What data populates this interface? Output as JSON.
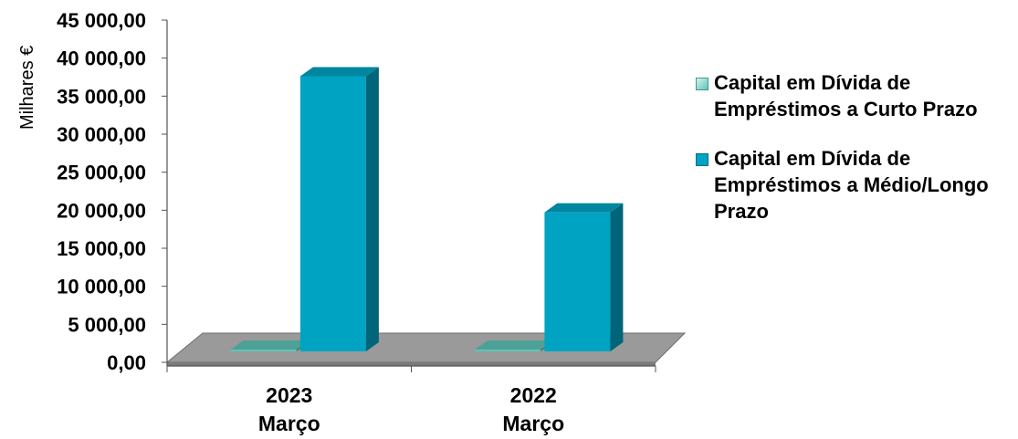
{
  "chart_data": {
    "type": "bar",
    "ylabel": "Milhares €",
    "ylim": [
      0,
      45000
    ],
    "yticks": [
      {
        "value": 45000,
        "label": "45 000,00"
      },
      {
        "value": 40000,
        "label": "40 000,00"
      },
      {
        "value": 35000,
        "label": "35 000,00"
      },
      {
        "value": 30000,
        "label": "30 000,00"
      },
      {
        "value": 25000,
        "label": "25 000,00"
      },
      {
        "value": 20000,
        "label": "20 000,00"
      },
      {
        "value": 15000,
        "label": "15 000,00"
      },
      {
        "value": 10000,
        "label": "10 000,00"
      },
      {
        "value": 5000,
        "label": "5 000,00"
      },
      {
        "value": 0,
        "label": "0,00"
      }
    ],
    "categories": [
      {
        "year": "2023",
        "month": "Março"
      },
      {
        "year": "2022",
        "month": "Março"
      }
    ],
    "series": [
      {
        "name": "Capital em Dívida de Empréstimos a Curto Prazo",
        "values": [
          0,
          0
        ],
        "color": "#5fc4b8"
      },
      {
        "name": "Capital em Dívida de Empréstimos a Médio/Longo Prazo",
        "values": [
          38700,
          20800
        ],
        "color": "#00a3c2"
      }
    ],
    "legend_position": "right",
    "grid": false,
    "floor_color": "#9a9a9a"
  }
}
